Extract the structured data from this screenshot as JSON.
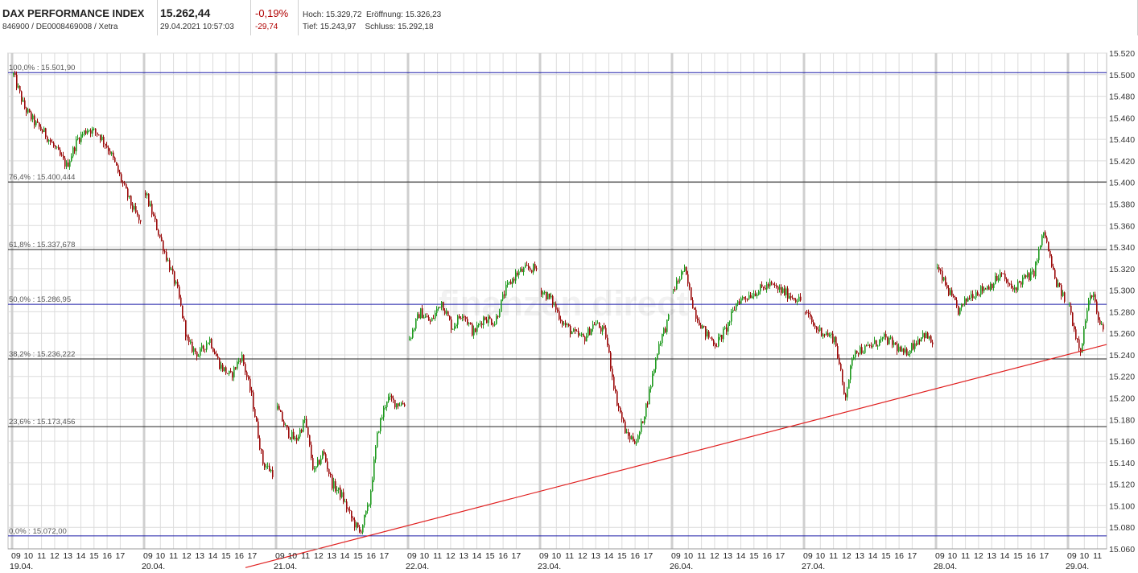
{
  "header": {
    "name": "DAX PERFORMANCE INDEX",
    "ids": "846900 / DE0008469008 / Xetra",
    "price": "15.262,44",
    "datetime": "29.04.2021 10:57:03",
    "change_pct": "-0,19%",
    "change_abs": "-29,74",
    "high_label": "Hoch:",
    "high": "15.329,72",
    "open_label": "Eröffnung:",
    "open": "15.326,23",
    "low_label": "Tief:",
    "low": "15.243,97",
    "close_label": "Schluss:",
    "close": "15.292,18"
  },
  "watermark": "finanzen direct",
  "colors": {
    "up": "#1f9a1f",
    "down": "#9b0b0b",
    "trend": "#e02020",
    "fib_blue": "#1c1ca8",
    "fib_black": "#222222",
    "grid": "#dcdcdc",
    "day_sep": "#cfcfcf"
  },
  "chart_data": {
    "type": "candlestick",
    "ylim": [
      15060,
      15520
    ],
    "yticks": [
      "15.060",
      "15.080",
      "15.100",
      "15.120",
      "15.140",
      "15.160",
      "15.180",
      "15.200",
      "15.220",
      "15.240",
      "15.260",
      "15.280",
      "15.300",
      "15.320",
      "15.340",
      "15.360",
      "15.380",
      "15.400",
      "15.420",
      "15.440",
      "15.460",
      "15.480",
      "15.500",
      "15.520"
    ],
    "hour_labels": [
      "09",
      "10",
      "11",
      "12",
      "13",
      "14",
      "15",
      "16",
      "17"
    ],
    "days": [
      {
        "date": "19.04.",
        "path": [
          15500,
          15470,
          15455,
          15445,
          15430,
          15415,
          15440,
          15450,
          15445,
          15430,
          15405,
          15380,
          15360
        ]
      },
      {
        "date": "20.04.",
        "path": [
          15390,
          15360,
          15330,
          15300,
          15250,
          15240,
          15255,
          15230,
          15220,
          15240,
          15200,
          15140,
          15130
        ]
      },
      {
        "date": "21.04.",
        "path": [
          15190,
          15170,
          15160,
          15180,
          15130,
          15150,
          15120,
          15110,
          15090,
          15075,
          15100,
          15170,
          15200,
          15195,
          15195
        ]
      },
      {
        "date": "22.04.",
        "path": [
          15255,
          15280,
          15270,
          15290,
          15265,
          15280,
          15260,
          15275,
          15270,
          15300,
          15315,
          15320,
          15320
        ]
      },
      {
        "date": "23.04.",
        "path": [
          15300,
          15290,
          15270,
          15260,
          15255,
          15270,
          15260,
          15200,
          15165,
          15160,
          15200,
          15250,
          15275
        ]
      },
      {
        "date": "26.04.",
        "path": [
          15300,
          15320,
          15280,
          15260,
          15250,
          15265,
          15290,
          15295,
          15300,
          15305,
          15300,
          15295,
          15290
        ]
      },
      {
        "date": "27.04.",
        "path": [
          15280,
          15265,
          15260,
          15255,
          15200,
          15245,
          15245,
          15250,
          15255,
          15250,
          15240,
          15250,
          15260,
          15250
        ]
      },
      {
        "date": "28.04.",
        "path": [
          15320,
          15300,
          15280,
          15295,
          15300,
          15305,
          15315,
          15300,
          15310,
          15315,
          15355,
          15310,
          15290
        ]
      },
      {
        "date": "29.04.",
        "path": [
          15285,
          15260,
          15245,
          15280,
          15300,
          15270,
          15262
        ]
      }
    ],
    "fib_levels": [
      {
        "label": "100,0% : 15.501,90",
        "value": 15501.9,
        "color": "blue"
      },
      {
        "label": "76,4% : 15.400,444",
        "value": 15400.444,
        "color": "black"
      },
      {
        "label": "61,8% : 15.337,678",
        "value": 15337.678,
        "color": "black"
      },
      {
        "label": "50,0% : 15.286,95",
        "value": 15286.95,
        "color": "blue"
      },
      {
        "label": "38,2% : 15.236,222",
        "value": 15236.222,
        "color": "black"
      },
      {
        "label": "23,6% : 15.173,456",
        "value": 15173.456,
        "color": "black"
      },
      {
        "label": "0,0% : 15.072,00",
        "value": 15072.0,
        "color": "blue"
      }
    ],
    "trendline": {
      "from": {
        "date": "21.04.",
        "hour": "15:45",
        "value": 15072
      },
      "to": {
        "date": "29.04.",
        "hour": "11:30",
        "value": 15249
      }
    }
  }
}
